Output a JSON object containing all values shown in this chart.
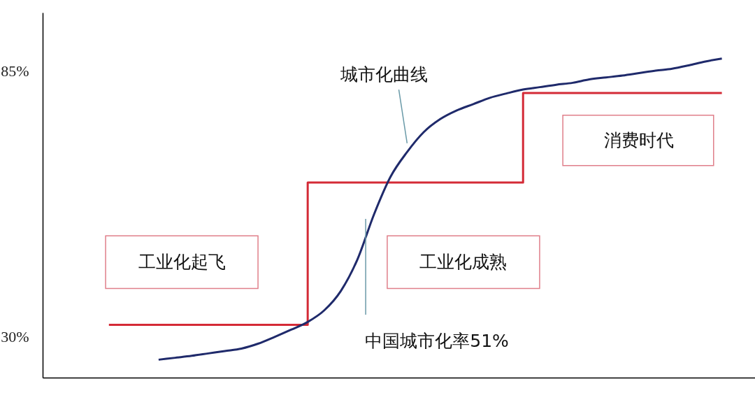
{
  "chart_data": {
    "type": "line",
    "categories": [
      null,
      null,
      null,
      null,
      null,
      null,
      null,
      null,
      null,
      null,
      null,
      null,
      null,
      null,
      null,
      null,
      null,
      null,
      null,
      null,
      null,
      null,
      null,
      null,
      null,
      null,
      null,
      null,
      null,
      null,
      null,
      null,
      null,
      null,
      null,
      null,
      null,
      null,
      null,
      null,
      null,
      null,
      null,
      null
    ],
    "ylim": [
      21.6,
      97
    ],
    "yticks": [
      {
        "value": 30,
        "label": "30%"
      },
      {
        "value": 85,
        "label": "85%"
      }
    ],
    "tick_labels": "y",
    "marker": "none",
    "series": [
      {
        "type": "step",
        "color": "#d42a36",
        "values": [
          null,
          null,
          null,
          null,
          32.5,
          32.5,
          32.5,
          32.5,
          32.5,
          32.5,
          32.5,
          32.5,
          32.5,
          32.5,
          32.5,
          32.5,
          61.9,
          61.9,
          61.9,
          61.9,
          61.9,
          61.9,
          61.9,
          61.9,
          61.9,
          61.9,
          61.9,
          61.9,
          61.9,
          80.4,
          80.4,
          80.4,
          80.4,
          80.4,
          80.4,
          80.4,
          80.4,
          80.4,
          80.4,
          80.4,
          80.4,
          80.4,
          null,
          null
        ]
      },
      {
        "color": "#1f2a6b",
        "values": [
          null,
          null,
          null,
          null,
          null,
          null,
          null,
          25.3,
          25.7,
          26.1,
          26.6,
          27.1,
          27.6,
          28.6,
          30.0,
          31.5,
          33.1,
          35.5,
          39.5,
          46.0,
          55.3,
          63.1,
          68.2,
          72.3,
          75.0,
          76.8,
          78.1,
          79.4,
          80.3,
          81.1,
          81.6,
          82.1,
          82.5,
          83.2,
          83.6,
          84.0,
          84.5,
          85.0,
          85.4,
          86.1,
          86.9,
          87.5,
          null,
          null
        ]
      }
    ],
    "annotations": [
      "工业化起飞",
      "工业化成熟",
      "消费时代",
      "城市化曲线",
      "中国城市化率51%"
    ]
  }
}
